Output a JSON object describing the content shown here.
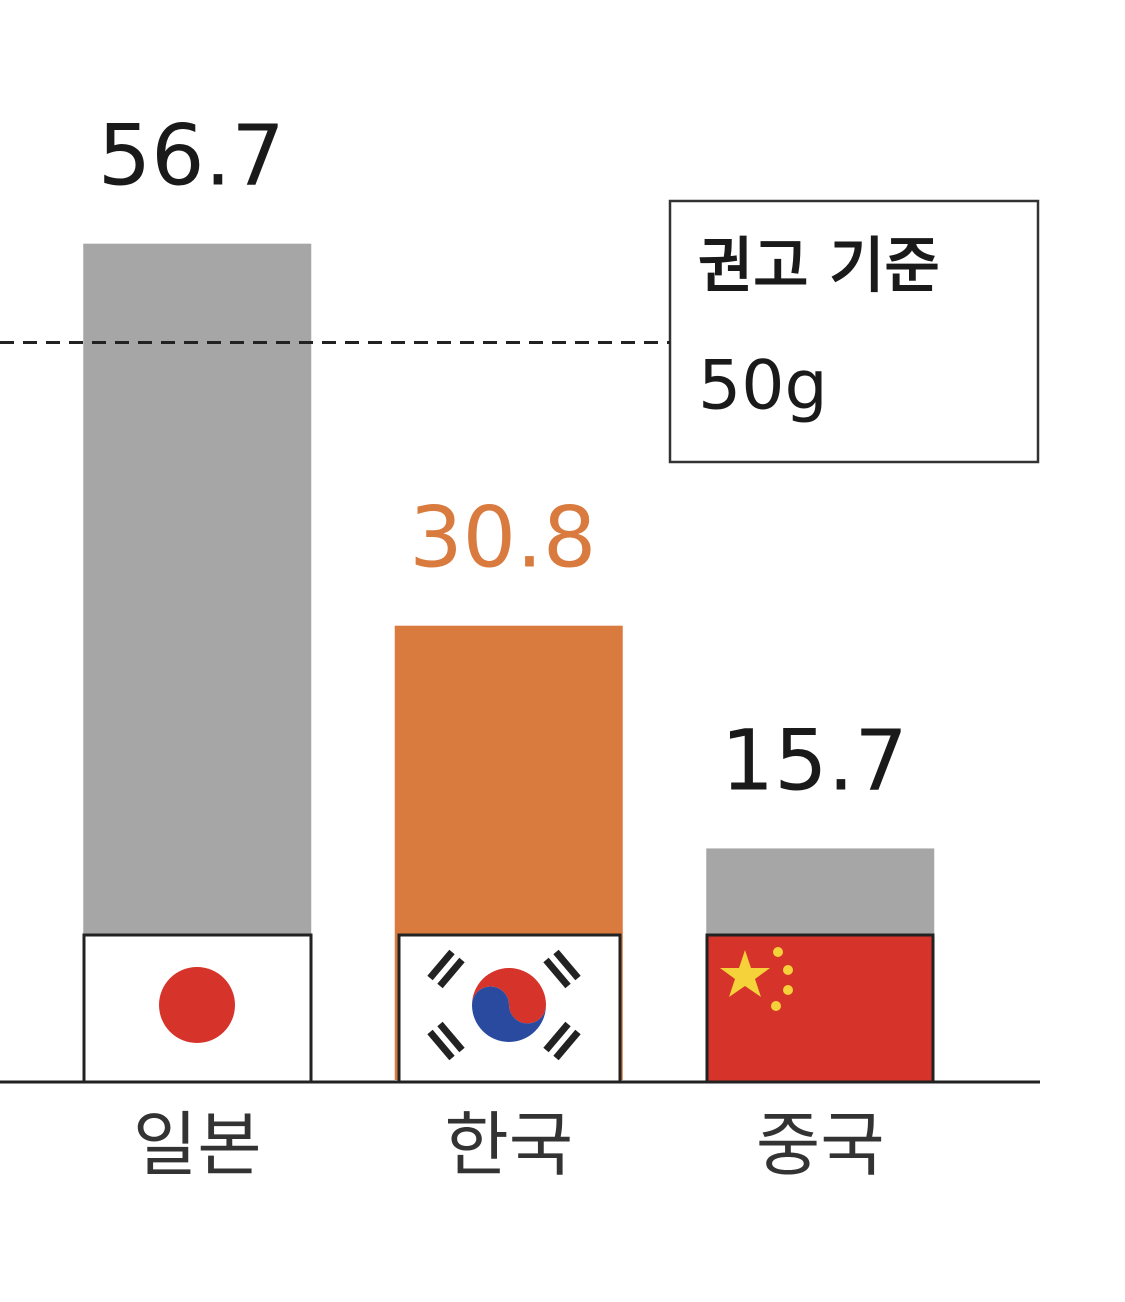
{
  "chart_data": {
    "type": "bar",
    "categories": [
      "일본",
      "한국",
      "중국"
    ],
    "values": [
      56.7,
      30.8,
      15.7
    ],
    "colors": [
      "#a6a6a6",
      "#d97b3f",
      "#a6a6a6"
    ],
    "label_colors": [
      "#1a1a1a",
      "#d97b3f",
      "#1a1a1a"
    ],
    "ylim": [
      0,
      70
    ],
    "reference": {
      "value": 50,
      "label": "권고 기준",
      "value_label": "50g"
    }
  }
}
